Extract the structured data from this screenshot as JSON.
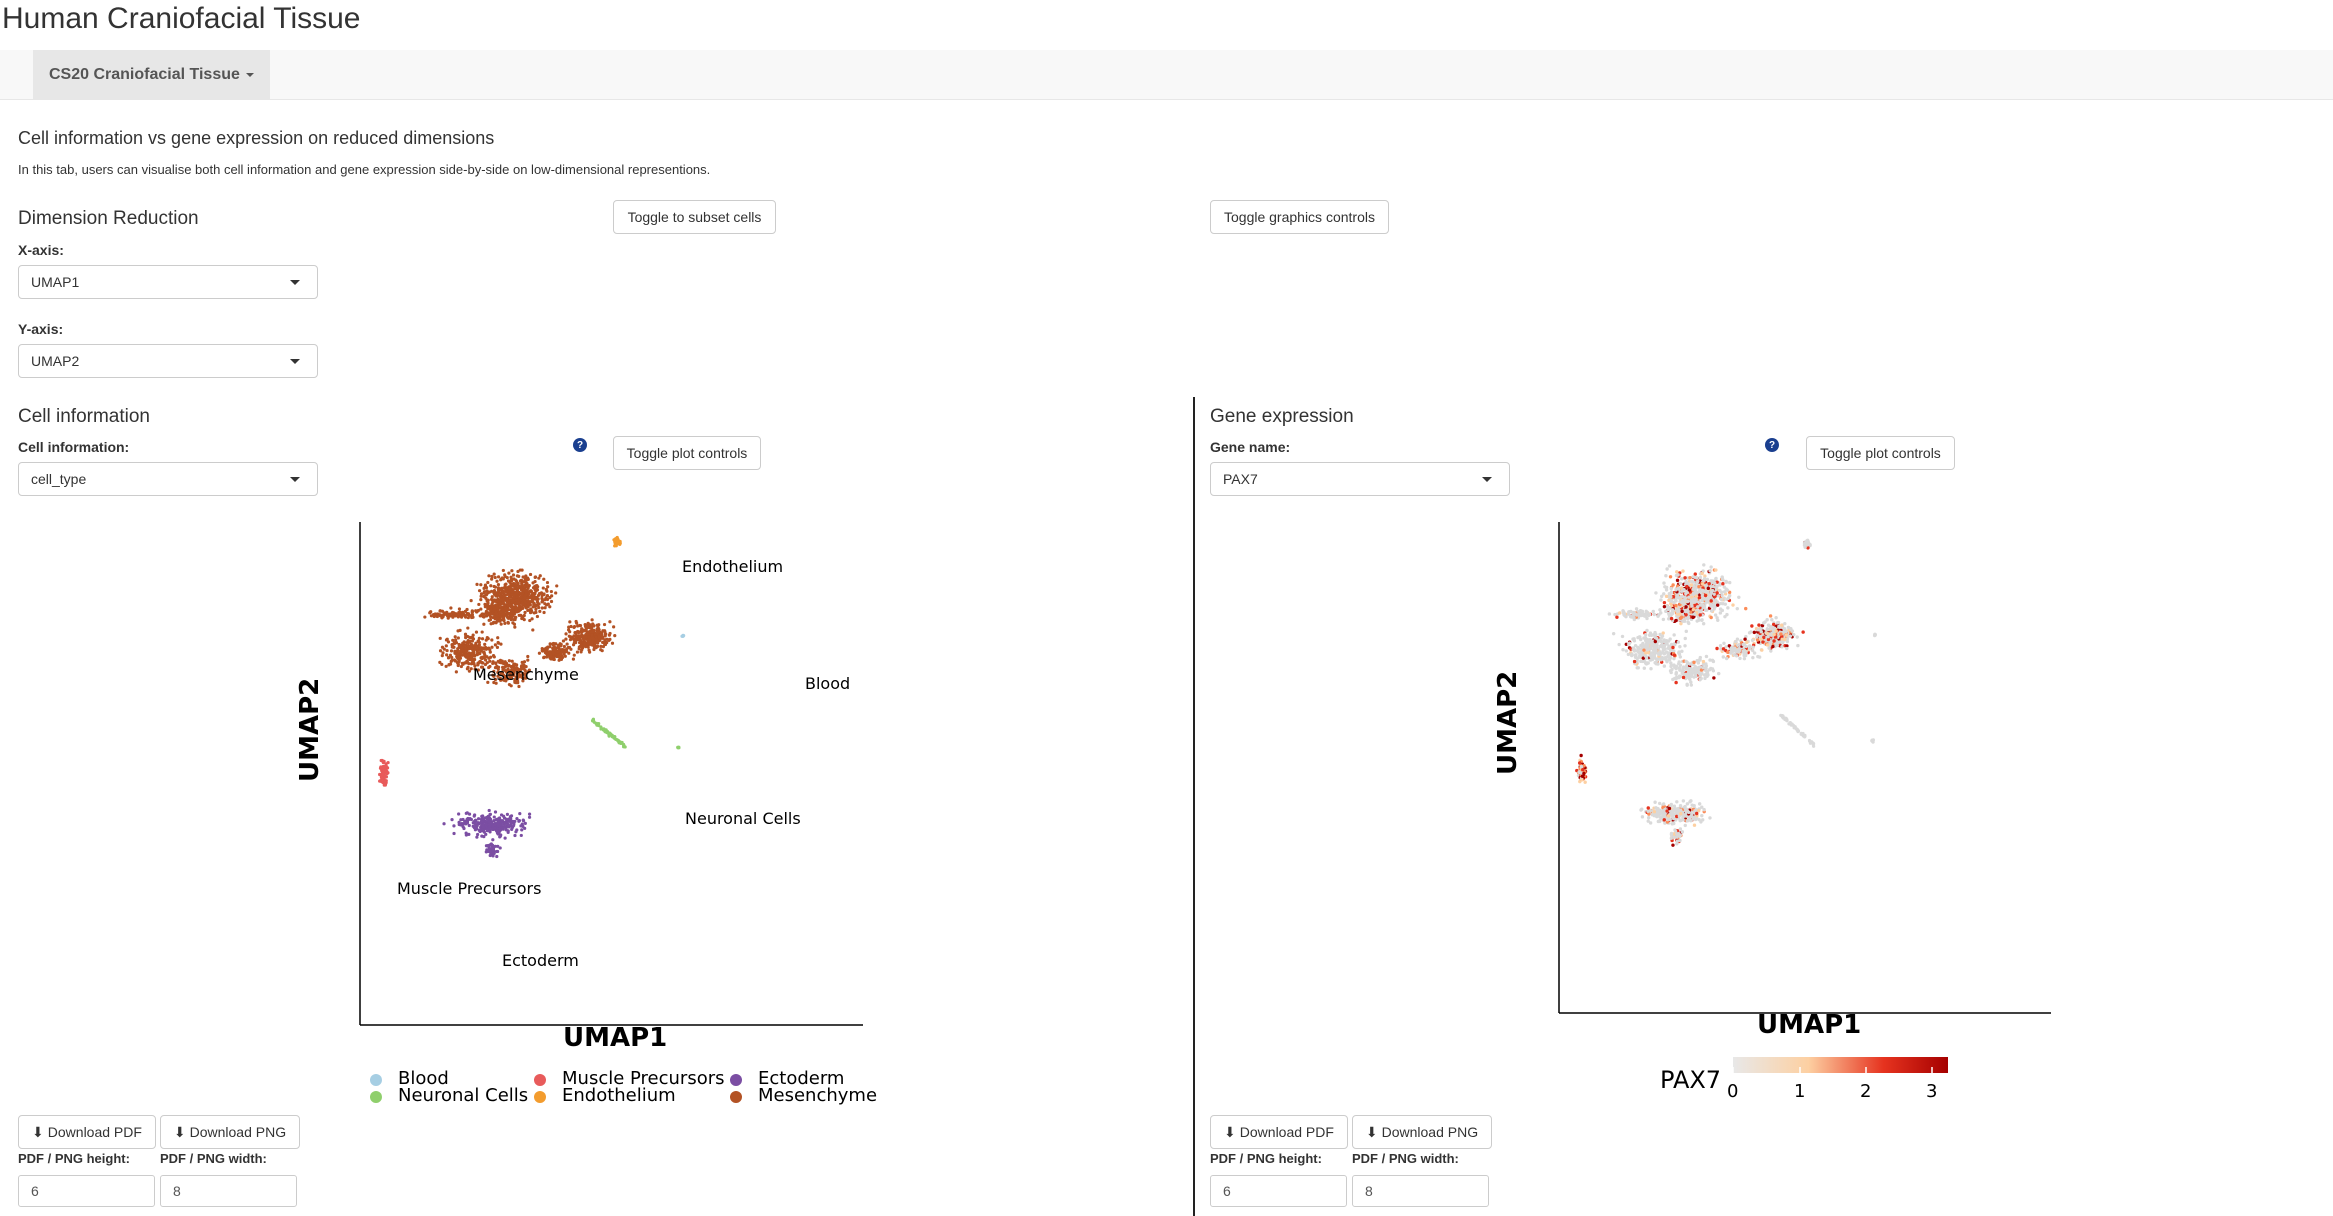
{
  "app": {
    "title": "Human Craniofacial Tissue"
  },
  "nav": {
    "active_tab": "CS20 Craniofacial Tissue"
  },
  "section": {
    "heading": "Cell information vs gene expression on reduced dimensions",
    "description": "In this tab, users can visualise both cell information and gene expression side-by-side on low-dimensional representions."
  },
  "dimred": {
    "heading": "Dimension Reduction",
    "x_label": "X-axis:",
    "x_value": "UMAP1",
    "y_label": "Y-axis:",
    "y_value": "UMAP2"
  },
  "buttons": {
    "subset": "Toggle to subset cells",
    "graphics": "Toggle graphics controls"
  },
  "left": {
    "heading": "Cell information",
    "select_label": "Cell information:",
    "select_value": "cell_type",
    "toggle_plot": "Toggle plot controls",
    "help": "?",
    "download_pdf": "Download PDF",
    "download_png": "Download PNG",
    "height_label": "PDF / PNG height:",
    "width_label": "PDF / PNG width:",
    "height_value": "6",
    "width_value": "8"
  },
  "right": {
    "heading": "Gene expression",
    "select_label": "Gene name:",
    "select_value": "PAX7",
    "toggle_plot": "Toggle plot controls",
    "help": "?",
    "download_pdf": "Download PDF",
    "download_png": "Download PNG",
    "height_label": "PDF / PNG height:",
    "width_label": "PDF / PNG width:",
    "height_value": "6",
    "width_value": "8"
  },
  "plot_left": {
    "xlabel": "UMAP1",
    "ylabel": "UMAP2",
    "clusters": [
      {
        "name": "Endothelium",
        "color": "#f39c2e"
      },
      {
        "name": "Mesenchyme",
        "color": "#b35224"
      },
      {
        "name": "Blood",
        "color": "#a6cee3"
      },
      {
        "name": "Neuronal Cells",
        "color": "#8fcf6c"
      },
      {
        "name": "Muscle Precursors",
        "color": "#e85b5b"
      },
      {
        "name": "Ectoderm",
        "color": "#7b4ea3"
      }
    ],
    "legend": [
      {
        "name": "Blood",
        "color": "#a6cee3"
      },
      {
        "name": "Muscle Precursors",
        "color": "#e85b5b"
      },
      {
        "name": "Ectoderm",
        "color": "#7b4ea3"
      },
      {
        "name": "Neuronal Cells",
        "color": "#8fcf6c"
      },
      {
        "name": "Endothelium",
        "color": "#f39c2e"
      },
      {
        "name": "Mesenchyme",
        "color": "#b35224"
      }
    ]
  },
  "plot_right": {
    "xlabel": "UMAP1",
    "ylabel": "UMAP2",
    "legend_title": "PAX7",
    "scale_ticks": [
      "0",
      "1",
      "2",
      "3"
    ],
    "low_color": "#d9d9d9",
    "high_color": "#a50000"
  }
}
